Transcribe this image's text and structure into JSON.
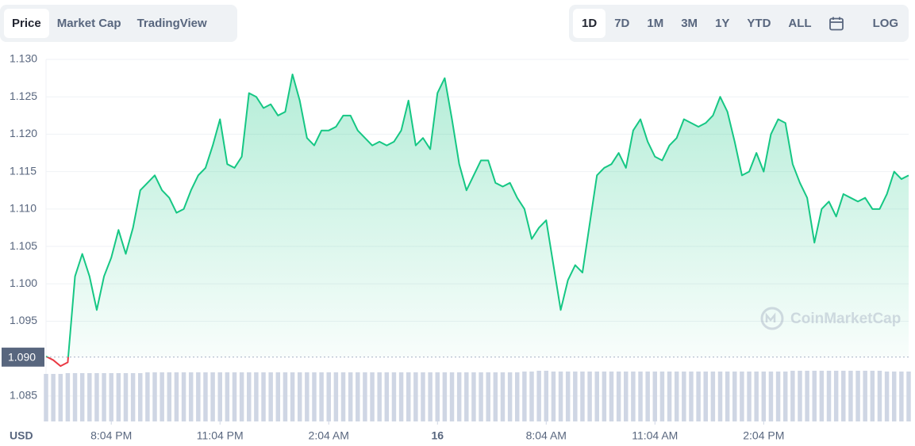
{
  "controls": {
    "tabs": [
      "Price",
      "Market Cap",
      "TradingView"
    ],
    "active_tab_index": 0,
    "ranges": [
      "1D",
      "7D",
      "1M",
      "3M",
      "1Y",
      "YTD",
      "ALL"
    ],
    "active_range_index": 0,
    "log_button": "LOG"
  },
  "chart_data": {
    "type": "line",
    "y_unit_label": "USD",
    "watermark": "CoinMarketCap",
    "xlim": [
      0,
      119
    ],
    "xticks": [
      {
        "value": 9,
        "label": "8:04 PM"
      },
      {
        "value": 24,
        "label": "11:04 PM"
      },
      {
        "value": 39,
        "label": "2:04 AM"
      },
      {
        "value": 54,
        "label": "16"
      },
      {
        "value": 69,
        "label": "8:04 AM"
      },
      {
        "value": 84,
        "label": "11:04 AM"
      },
      {
        "value": 99,
        "label": "2:04 PM"
      }
    ],
    "ylim": [
      1.0816,
      1.13
    ],
    "yticks": [
      1.085,
      1.095,
      {
        "value": 1.1,
        "label": "1.100"
      },
      1.105,
      {
        "value": 1.11,
        "label": "1.110"
      },
      1.115,
      {
        "value": 1.12,
        "label": "1.120"
      },
      1.125,
      {
        "value": 1.13,
        "label": "1.130"
      }
    ],
    "grid": true,
    "reference": {
      "value": 1.0902,
      "label": "1.090"
    },
    "up_color": "#16c784",
    "down_color": "#ea3943",
    "volume_color": "#cfd6e4",
    "series": [
      {
        "values": [
          1.0903,
          1.0898,
          1.089,
          1.0895,
          1.101,
          1.104,
          1.101,
          1.0965,
          1.101,
          1.1035,
          1.1072,
          1.104,
          1.1075,
          1.1125,
          1.1135,
          1.1145,
          1.1125,
          1.1115,
          1.1095,
          1.11,
          1.1125,
          1.1145,
          1.1155,
          1.1185,
          1.122,
          1.116,
          1.1155,
          1.117,
          1.1255,
          1.125,
          1.1235,
          1.124,
          1.1225,
          1.123,
          1.128,
          1.1245,
          1.1195,
          1.1185,
          1.1205,
          1.1205,
          1.121,
          1.1225,
          1.1225,
          1.1205,
          1.1195,
          1.1185,
          1.119,
          1.1185,
          1.119,
          1.1205,
          1.1245,
          1.1185,
          1.1195,
          1.118,
          1.1255,
          1.1275,
          1.122,
          1.116,
          1.1125,
          1.1145,
          1.1165,
          1.1165,
          1.1135,
          1.113,
          1.1135,
          1.1115,
          1.11,
          1.106,
          1.1075,
          1.1085,
          1.1025,
          1.0965,
          1.1005,
          1.1025,
          1.1015,
          1.108,
          1.1145,
          1.1155,
          1.116,
          1.1175,
          1.1155,
          1.1205,
          1.122,
          1.119,
          1.117,
          1.1165,
          1.1185,
          1.1195,
          1.122,
          1.1215,
          1.121,
          1.1215,
          1.1225,
          1.125,
          1.123,
          1.119,
          1.1145,
          1.115,
          1.1175,
          1.115,
          1.12,
          1.122,
          1.1215,
          1.116,
          1.1135,
          1.1115,
          1.1055,
          1.11,
          1.111,
          1.109,
          1.112,
          1.1115,
          1.111,
          1.1115,
          1.11,
          1.11,
          1.112,
          1.115,
          1.114,
          1.1145
        ]
      }
    ],
    "volume_values": [
      60,
      60,
      60,
      61,
      61,
      61,
      61,
      61,
      61,
      61,
      61,
      61,
      61,
      61,
      62,
      62,
      62,
      62,
      62,
      62,
      62,
      62,
      62,
      62,
      62,
      62,
      62,
      62,
      62,
      62,
      62,
      62,
      62,
      62,
      62,
      62,
      62,
      62,
      62,
      62,
      62,
      62,
      62,
      62,
      62,
      62,
      62,
      62,
      62,
      62,
      62,
      62,
      62,
      62,
      62,
      62,
      62,
      62,
      62,
      62,
      62,
      62,
      62,
      62,
      62,
      62,
      63,
      63,
      64,
      64,
      63,
      63,
      63,
      63,
      63,
      63,
      63,
      63,
      63,
      63,
      63,
      63,
      63,
      63,
      63,
      63,
      63,
      63,
      63,
      63,
      63,
      63,
      63,
      63,
      63,
      63,
      63,
      63,
      63,
      63,
      63,
      63,
      63,
      64,
      64,
      64,
      64,
      64,
      64,
      64,
      64,
      64,
      64,
      64,
      64,
      64,
      63,
      63,
      63,
      63
    ]
  }
}
